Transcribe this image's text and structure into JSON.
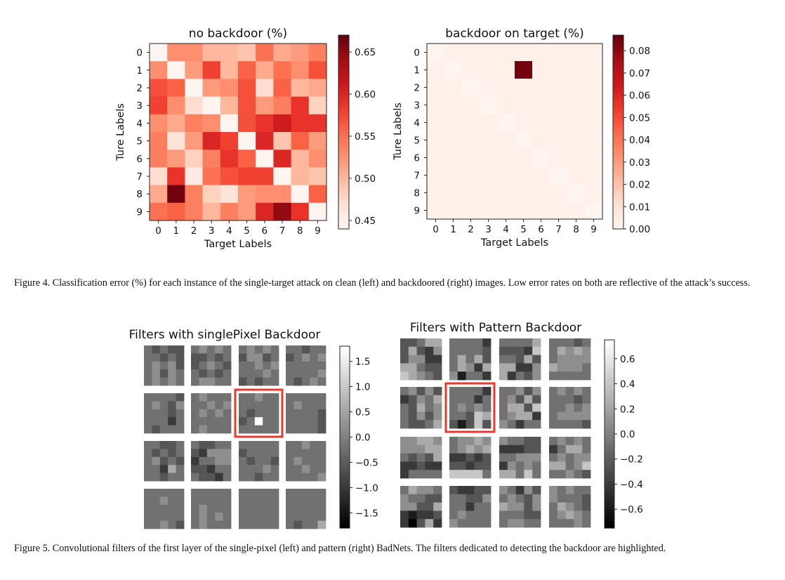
{
  "figure4": {
    "caption": "Figure 4. Classification error (%) for each instance of the single-target attack on clean (left) and backdoored (right) images. Low error rates on both are reflective of the attack’s success."
  },
  "figure5": {
    "caption": "Figure 5. Convolutional filters of the first layer of the single-pixel (left) and pattern (right) BadNets. The filters dedicated to detecting the backdoor are highlighted."
  },
  "chart_data": [
    {
      "type": "heatmap",
      "title": "no backdoor (%)",
      "xlabel": "Target Labels",
      "ylabel": "Ture Labels",
      "x_ticks": [
        "0",
        "1",
        "2",
        "3",
        "4",
        "5",
        "6",
        "7",
        "8",
        "9"
      ],
      "y_ticks": [
        "0",
        "1",
        "2",
        "3",
        "4",
        "5",
        "6",
        "7",
        "8",
        "9"
      ],
      "colormap": "Reds",
      "color_range": [
        0.44,
        0.67
      ],
      "colorbar_ticks": [
        "0.45",
        "0.50",
        "0.55",
        "0.60",
        "0.65"
      ],
      "values": [
        [
          0.44,
          0.53,
          0.53,
          0.5,
          0.5,
          0.49,
          0.55,
          0.51,
          0.52,
          0.54
        ],
        [
          0.53,
          0.44,
          0.52,
          0.58,
          0.5,
          0.56,
          0.51,
          0.55,
          0.53,
          0.57
        ],
        [
          0.57,
          0.56,
          0.44,
          0.52,
          0.53,
          0.57,
          0.47,
          0.56,
          0.5,
          0.51
        ],
        [
          0.58,
          0.53,
          0.47,
          0.44,
          0.5,
          0.57,
          0.52,
          0.54,
          0.59,
          0.48
        ],
        [
          0.53,
          0.51,
          0.54,
          0.53,
          0.44,
          0.57,
          0.59,
          0.61,
          0.59,
          0.59
        ],
        [
          0.54,
          0.465,
          0.52,
          0.6,
          0.58,
          0.44,
          0.6,
          0.49,
          0.56,
          0.52
        ],
        [
          0.54,
          0.52,
          0.48,
          0.54,
          0.59,
          0.56,
          0.44,
          0.6,
          0.5,
          0.53
        ],
        [
          0.47,
          0.59,
          0.455,
          0.55,
          0.57,
          0.58,
          0.58,
          0.44,
          0.5,
          0.49
        ],
        [
          0.51,
          0.665,
          0.54,
          0.48,
          0.465,
          0.52,
          0.53,
          0.53,
          0.44,
          0.56
        ],
        [
          0.55,
          0.56,
          0.54,
          0.5,
          0.54,
          0.52,
          0.6,
          0.65,
          0.59,
          0.44
        ]
      ]
    },
    {
      "type": "heatmap",
      "title": "backdoor on target (%)",
      "xlabel": "Target Labels",
      "ylabel": "Ture Labels",
      "x_ticks": [
        "0",
        "1",
        "2",
        "3",
        "4",
        "5",
        "6",
        "7",
        "8",
        "9"
      ],
      "y_ticks": [
        "0",
        "1",
        "2",
        "3",
        "4",
        "5",
        "6",
        "7",
        "8",
        "9"
      ],
      "colormap": "Reds",
      "color_range": [
        0.0,
        0.087
      ],
      "colorbar_ticks": [
        "0.00",
        "0.01",
        "0.02",
        "0.03",
        "0.04",
        "0.05",
        "0.06",
        "0.07",
        "0.08"
      ],
      "values": [
        [
          0,
          0.002,
          0.002,
          0.002,
          0.002,
          0.002,
          0.002,
          0.002,
          0.002,
          0.002
        ],
        [
          0.002,
          0,
          0.002,
          0.002,
          0.002,
          0.085,
          0.002,
          0.002,
          0.002,
          0.002
        ],
        [
          0.002,
          0.002,
          0,
          0.002,
          0.002,
          0.002,
          0.002,
          0.002,
          0.002,
          0.002
        ],
        [
          0.002,
          0.002,
          0.002,
          0,
          0.002,
          0.002,
          0.002,
          0.002,
          0.002,
          0.002
        ],
        [
          0.002,
          0.002,
          0.002,
          0.002,
          0,
          0.002,
          0.002,
          0.002,
          0.002,
          0.002
        ],
        [
          0.002,
          0.002,
          0.002,
          0.002,
          0.002,
          0,
          0.002,
          0.002,
          0.002,
          0.002
        ],
        [
          0.002,
          0.002,
          0.002,
          0.002,
          0.002,
          0.002,
          0,
          0.002,
          0.002,
          0.002
        ],
        [
          0.002,
          0.002,
          0.002,
          0.002,
          0.002,
          0.002,
          0.002,
          0,
          0.002,
          0.002
        ],
        [
          0.002,
          0.002,
          0.002,
          0.002,
          0.002,
          0.002,
          0.002,
          0.002,
          0,
          0.002
        ],
        [
          0.002,
          0.002,
          0.002,
          0.002,
          0.002,
          0.002,
          0.002,
          0.002,
          0.002,
          0
        ]
      ]
    },
    {
      "type": "heatmap",
      "title": "Filters with singlePixel Backdoor",
      "colormap": "gray",
      "color_range": [
        -1.8,
        1.8
      ],
      "colorbar_ticks": [
        "1.5",
        "1.0",
        "0.5",
        "0.0",
        "−0.5",
        "−1.0",
        "−1.5"
      ],
      "grid": [
        4,
        4
      ],
      "highlighted_filter": [
        1,
        2
      ],
      "highlight_color": "#e8392c",
      "filter_levels_0_to_9": [
        "4343344343454534535445454",
        "4545433434345434343445544",
        "4545435534445454445434344",
        "4434434545444444444543454",
        "4444345435444344442443444",
        "4544444545454544444445444",
        "4454444444434443494444444",
        "4444445444444434444344443",
        "4433443434453434426444344",
        "4334432555244553324443324",
        "4444434444434434445444344",
        "4454444444454444454444445",
        "4444444544444444444444543",
        "4444444444454444545445444",
        "4444444444444444444444444",
        "4444444444444444444443446"
      ]
    },
    {
      "type": "heatmap",
      "title": "Filters with Pattern Backdoor",
      "colormap": "gray",
      "color_range": [
        -0.75,
        0.75
      ],
      "colorbar_ticks": [
        "0.6",
        "0.4",
        "0.2",
        "0.0",
        "−0.2",
        "−0.4",
        "−0.6"
      ],
      "grid": [
        4,
        4
      ],
      "highlighted_filter": [
        1,
        1
      ],
      "highlight_color": "#e8392c",
      "filter_levels_0_to_9": [
        "3346636325355226643376543",
        "4444244443464634652651442",
        "4444633327443636622562435",
        "4443446565455556555444444",
        "4535323546436454353543346",
        "4444244424454544437631373",
        "4453545363466374566254244",
        "4545444434445454555544443",
        "5566555566434362232224444",
        "4556545656223233323377774",
        "5443322233445552545466474",
        "4545424664454556645744543",
        "4655454433553362122320362",
        "3223344335442444544454444",
        "5425345435655354443345544",
        "5454454443465434565444454"
      ]
    }
  ]
}
